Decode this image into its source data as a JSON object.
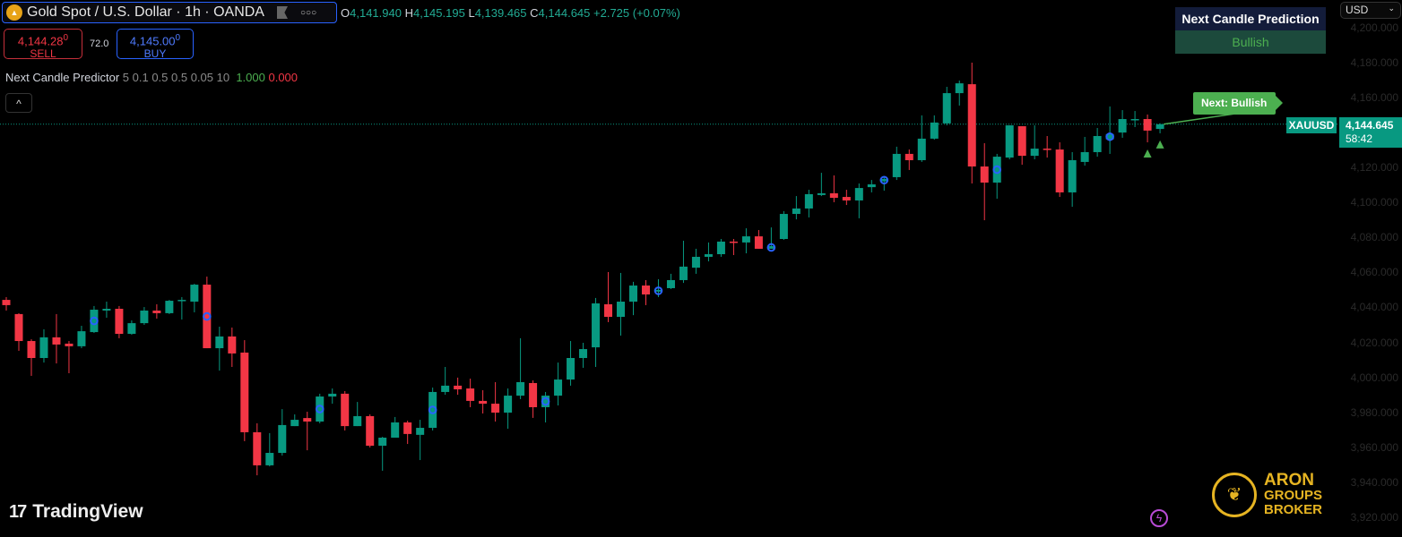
{
  "header": {
    "symbol_title": "Gold Spot / U.S. Dollar · 1h · OANDA",
    "ohlc": {
      "o_key": "O",
      "o": "4,141.940",
      "h_key": "H",
      "h": "4,145.195",
      "l_key": "L",
      "l": "4,139.465",
      "c_key": "C",
      "c": "4,144.645",
      "change": "+2.725 (+0.07%)"
    }
  },
  "trade": {
    "sell_price": "4,144.28",
    "sell_price_sup": "0",
    "sell_label": "SELL",
    "spread": "72.0",
    "buy_price": "4,145.00",
    "buy_price_sup": "0",
    "buy_label": "BUY"
  },
  "indicator": {
    "name": "Next Candle Predictor",
    "params": "5 0.1 0.5 0.5 0.05 10",
    "value_bull": "1.000",
    "value_bear": "0.000"
  },
  "collapse_icon": "chevron-up-icon",
  "prediction_table": {
    "header": "Next Candle Prediction",
    "value": "Bullish"
  },
  "currency_select": {
    "value": "USD"
  },
  "next_label": "Next: Bullish",
  "last_price": {
    "symbol": "XAUUSD",
    "price": "4,144.645",
    "countdown": "58:42"
  },
  "branding": {
    "tradingview": "TradingView",
    "broker": [
      "ARON",
      "GROUPS",
      "BROKER"
    ]
  },
  "colors": {
    "up": "#089981",
    "down": "#f23645",
    "marker": "#2962ff",
    "signal": "#4caf50",
    "price_line": "#089981"
  },
  "chart_data": {
    "type": "candlestick",
    "interval": "1h",
    "y_axis_ticks": [
      "4,200.000",
      "4,180.000",
      "4,160.000",
      "4,120.000",
      "4,100.000",
      "4,080.000",
      "4,060.000",
      "4,040.000",
      "4,020.000",
      "4,000.000",
      "3,980.000",
      "3,960.000",
      "3,940.000",
      "3,920.000"
    ],
    "y_tick_values": [
      4200,
      4180,
      4160,
      4120,
      4100,
      4080,
      4060,
      4040,
      4020,
      4000,
      3980,
      3960,
      3940,
      3920
    ],
    "ylim": [
      3915,
      4215
    ],
    "grid": false,
    "last_price": 4144.645,
    "ohlc": [
      [
        4044.3,
        4045.9,
        4038.2,
        4041.3
      ],
      [
        4036.2,
        4036.7,
        4015.2,
        4020.8
      ],
      [
        4020.8,
        4021.8,
        4000.9,
        4011.1
      ],
      [
        4011.1,
        4027.5,
        4008.5,
        4022.9
      ],
      [
        4022.9,
        4036.2,
        4008.0,
        4018.8
      ],
      [
        4019.3,
        4020.8,
        4002.4,
        4017.8
      ],
      [
        4017.8,
        4029.5,
        4016.7,
        4026.4
      ],
      [
        4025.9,
        4040.8,
        4025.4,
        4038.7
      ],
      [
        4038.2,
        4043.3,
        4034.1,
        4039.2
      ],
      [
        4039.2,
        4040.8,
        4022.4,
        4024.9
      ],
      [
        4024.9,
        4032.6,
        4024.4,
        4031.0
      ],
      [
        4031.0,
        4040.2,
        4030.0,
        4038.2
      ],
      [
        4038.2,
        4041.8,
        4033.6,
        4036.7
      ],
      [
        4036.7,
        4044.3,
        4036.2,
        4043.8
      ],
      [
        4043.8,
        4045.9,
        4033.1,
        4044.3
      ],
      [
        4043.3,
        4053.5,
        4037.2,
        4053.0
      ],
      [
        4053.0,
        4057.6,
        4016.7,
        4016.7
      ],
      [
        4016.7,
        4029.0,
        4003.9,
        4023.4
      ],
      [
        4023.4,
        4028.5,
        4006.0,
        4013.7
      ],
      [
        4014.2,
        4021.3,
        3963.6,
        3968.7
      ],
      [
        3968.7,
        3973.8,
        3944.1,
        3949.8
      ],
      [
        3949.8,
        3968.2,
        3949.2,
        3956.9
      ],
      [
        3956.9,
        3981.9,
        3955.4,
        3972.8
      ],
      [
        3972.2,
        3978.9,
        3972.2,
        3975.8
      ],
      [
        3976.8,
        3980.4,
        3958.4,
        3974.8
      ],
      [
        3974.8,
        3990.7,
        3973.8,
        3989.1
      ],
      [
        3989.1,
        3993.7,
        3985.0,
        3990.7
      ],
      [
        3990.7,
        3992.2,
        3969.7,
        3972.2
      ],
      [
        3972.2,
        3986.0,
        3972.2,
        3977.9
      ],
      [
        3977.9,
        3978.9,
        3960.0,
        3961.0
      ],
      [
        3961.0,
        3966.1,
        3946.7,
        3965.6
      ],
      [
        3965.6,
        3977.4,
        3965.6,
        3974.3
      ],
      [
        3974.3,
        3975.3,
        3962.0,
        3967.7
      ],
      [
        3967.2,
        3975.8,
        3952.8,
        3971.2
      ],
      [
        3971.2,
        3994.2,
        3969.7,
        3991.7
      ],
      [
        3991.7,
        4006.0,
        3990.1,
        3995.3
      ],
      [
        3995.3,
        3999.9,
        3990.1,
        3993.2
      ],
      [
        3993.7,
        3999.3,
        3983.0,
        3986.6
      ],
      [
        3986.6,
        3992.7,
        3979.4,
        3985.0
      ],
      [
        3985.0,
        3997.3,
        3974.8,
        3979.9
      ],
      [
        3979.9,
        3993.7,
        3970.7,
        3989.6
      ],
      [
        3989.6,
        4022.4,
        3987.6,
        3997.3
      ],
      [
        3996.8,
        3998.3,
        3976.9,
        3983.0
      ],
      [
        3983.0,
        3991.7,
        3974.3,
        3989.6
      ],
      [
        3989.6,
        4008.5,
        3984.0,
        3998.8
      ],
      [
        3998.8,
        4020.8,
        3995.3,
        4011.1
      ],
      [
        4011.1,
        4019.8,
        4005.5,
        4016.2
      ],
      [
        4017.2,
        4045.4,
        4006.0,
        4042.3
      ],
      [
        4041.8,
        4060.2,
        4031.6,
        4034.6
      ],
      [
        4034.6,
        4059.7,
        4023.9,
        4043.3
      ],
      [
        4043.3,
        4054.6,
        4035.6,
        4052.5
      ],
      [
        4052.5,
        4055.6,
        4041.3,
        4047.4
      ],
      [
        4049.0,
        4056.1,
        4045.9,
        4050.0
      ],
      [
        4051.0,
        4059.2,
        4050.5,
        4055.6
      ],
      [
        4055.6,
        4078.1,
        4054.0,
        4063.3
      ],
      [
        4062.7,
        4073.5,
        4059.2,
        4068.9
      ],
      [
        4068.9,
        4077.1,
        4066.3,
        4070.4
      ],
      [
        4070.4,
        4079.1,
        4068.9,
        4077.6
      ],
      [
        4077.6,
        4079.1,
        4069.9,
        4077.1
      ],
      [
        4077.1,
        4085.2,
        4070.9,
        4080.6
      ],
      [
        4080.6,
        4084.2,
        4073.5,
        4073.5
      ],
      [
        4073.5,
        4085.7,
        4073.5,
        4075.0
      ],
      [
        4079.1,
        4095.0,
        4078.6,
        4093.4
      ],
      [
        4093.4,
        4103.6,
        4090.3,
        4096.5
      ],
      [
        4096.5,
        4107.2,
        4091.4,
        4104.7
      ],
      [
        4104.2,
        4116.9,
        4103.6,
        4105.2
      ],
      [
        4105.2,
        4115.4,
        4100.1,
        4102.6
      ],
      [
        4103.1,
        4107.2,
        4098.5,
        4101.1
      ],
      [
        4101.1,
        4110.8,
        4090.9,
        4108.2
      ],
      [
        4108.7,
        4112.8,
        4105.7,
        4110.3
      ],
      [
        4112.0,
        4114.9,
        4106.7,
        4113.4
      ],
      [
        4114.4,
        4131.8,
        4112.8,
        4127.7
      ],
      [
        4127.7,
        4130.2,
        4118.5,
        4124.1
      ],
      [
        4124.1,
        4149.7,
        4123.1,
        4136.4
      ],
      [
        4136.4,
        4149.7,
        4135.8,
        4145.6
      ],
      [
        4145.1,
        4166.0,
        4144.0,
        4162.4
      ],
      [
        4162.4,
        4169.6,
        4155.3,
        4168.0
      ],
      [
        4167.5,
        4179.8,
        4110.8,
        4120.5
      ],
      [
        4120.5,
        4133.8,
        4089.8,
        4111.3
      ],
      [
        4111.3,
        4127.7,
        4102.1,
        4126.1
      ],
      [
        4125.6,
        4144.0,
        4124.6,
        4144.0
      ],
      [
        4143.5,
        4143.5,
        4121.5,
        4126.6
      ],
      [
        4126.6,
        4144.0,
        4124.6,
        4130.7
      ],
      [
        4130.7,
        4137.9,
        4125.6,
        4130.2
      ],
      [
        4130.2,
        4134.3,
        4103.1,
        4105.7
      ],
      [
        4105.7,
        4128.7,
        4097.5,
        4124.1
      ],
      [
        4123.1,
        4137.4,
        4121.0,
        4128.7
      ],
      [
        4128.7,
        4142.5,
        4126.1,
        4137.9
      ],
      [
        4136.0,
        4154.8,
        4127.7,
        4139.0
      ],
      [
        4139.9,
        4152.7,
        4136.9,
        4147.6
      ],
      [
        4147.6,
        4152.2,
        4143.0,
        4147.6
      ],
      [
        4147.6,
        4150.2,
        4134.3,
        4141.0
      ],
      [
        4141.94,
        4145.195,
        4139.465,
        4144.645
      ]
    ],
    "circle_markers_at_candle": [
      7,
      16,
      25,
      34,
      43,
      52,
      61,
      70,
      79,
      88
    ],
    "up_triangles_below_candle": [
      91,
      92
    ]
  }
}
